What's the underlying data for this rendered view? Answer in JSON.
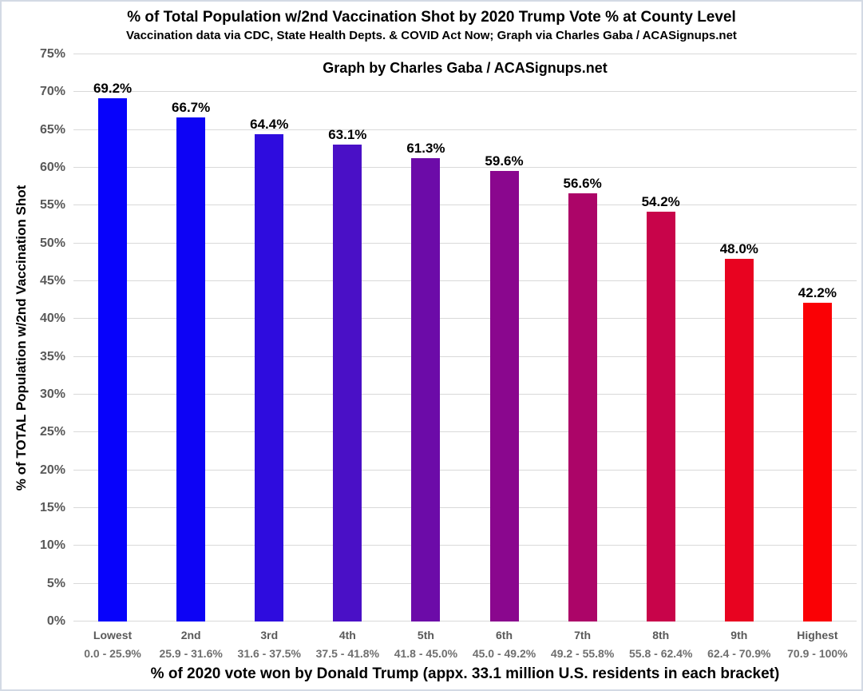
{
  "page": {
    "background": "#ffffff",
    "border_color": "#d3dae4"
  },
  "chart_data": {
    "type": "bar",
    "title": "% of Total Population w/2nd Vaccination Shot by 2020 Trump Vote % at County Level",
    "subtitle": "Vaccination data via CDC, State Health Depts. & COVID Act Now; Graph via Charles Gaba / ACASignups.net",
    "watermark": "Graph by Charles Gaba / ACASignups.net",
    "xlabel": "% of 2020 vote won by Donald Trump (appx. 33.1 million U.S. residents in each bracket)",
    "ylabel": "% of TOTAL Population w/2nd Vaccination Shot",
    "ylim": [
      0,
      75
    ],
    "y_tick_step": 5,
    "y_tick_suffix": "%",
    "grid": true,
    "legend": false,
    "categories": [
      {
        "name": "Lowest",
        "range": "0.0 - 25.9%"
      },
      {
        "name": "2nd",
        "range": "25.9 - 31.6%"
      },
      {
        "name": "3rd",
        "range": "31.6 - 37.5%"
      },
      {
        "name": "4th",
        "range": "37.5 - 41.8%"
      },
      {
        "name": "5th",
        "range": "41.8 - 45.0%"
      },
      {
        "name": "6th",
        "range": "45.0 - 49.2%"
      },
      {
        "name": "7th",
        "range": "49.2 - 55.8%"
      },
      {
        "name": "8th",
        "range": "55.8 - 62.4%"
      },
      {
        "name": "9th",
        "range": "62.4 - 70.9%"
      },
      {
        "name": "Highest",
        "range": "70.9 - 100%"
      }
    ],
    "values": [
      69.2,
      66.7,
      64.4,
      63.1,
      61.3,
      59.6,
      56.6,
      54.2,
      48.0,
      42.2
    ],
    "value_labels": [
      "69.2%",
      "66.7%",
      "64.4%",
      "63.1%",
      "61.3%",
      "59.6%",
      "56.6%",
      "54.2%",
      "48.0%",
      "42.2%"
    ],
    "bar_colors": [
      "#0702FB",
      "#0D03F5",
      "#2E0CDE",
      "#4A10C6",
      "#6C0BA8",
      "#8A078E",
      "#AC0568",
      "#C8044A",
      "#E80320",
      "#FA0105"
    ]
  },
  "style_colors": {
    "grid": "#d9d9d9",
    "tick_label": "#595959",
    "category_name": "#595959",
    "category_range": "#6e6e6e",
    "text": "#000000"
  }
}
